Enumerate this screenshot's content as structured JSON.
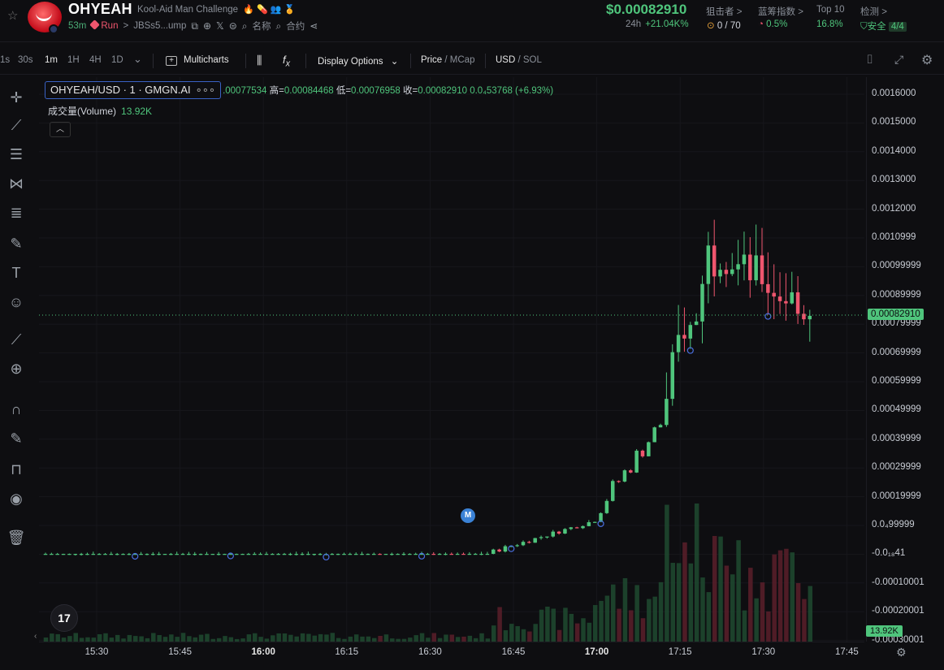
{
  "header": {
    "title": "OHYEAH",
    "subtitle": "Kool-Aid Man Challenge",
    "age": "53m",
    "run_label": "Run",
    "address": "JBSs5...ump",
    "name_label": "名称",
    "contract_label": "合约",
    "price": "$0.00082910",
    "change_label": "24h",
    "change_value": "+21.04K%",
    "sniper_label": "狙击者 >",
    "sniper_value": "0 / 70",
    "bluechip_label": "蓝筹指数 >",
    "bluechip_value": "0.5%",
    "top10_label": "Top 10",
    "top10_value": "16.8%",
    "audit_label": "检测 >",
    "audit_value": "安全",
    "audit_score": "4/4"
  },
  "toolbar": {
    "intervals": [
      "1s",
      "30s",
      "1m",
      "1H",
      "4H",
      "1D"
    ],
    "active_interval": "1m",
    "multicharts": "Multicharts",
    "display_options": "Display Options",
    "price_label": "Price",
    "mcap_label": "MCap",
    "usd_label": "USD",
    "sol_label": "SOL"
  },
  "legend": {
    "symbol": "OHYEAH/USD · 1 · GMGN.AI",
    "ohlc": ".00077534",
    "high_label": "高=",
    "high": "0.00084468",
    "low_label": "低=",
    "low": "0.00076958",
    "close_label": "收=",
    "close": "0.00082910",
    "change": "0.0₄53768 (+6.93%)",
    "volume_label": "成交量(Volume)",
    "volume_value": "13.92K"
  },
  "yaxis": {
    "labels": [
      "0.0016000",
      "0.0015000",
      "0.0014000",
      "0.0013000",
      "0.0012000",
      "0.0010999",
      "0.00099999",
      "0.00089999",
      "0.00079999",
      "0.00069999",
      "0.00059999",
      "0.00049999",
      "0.00039999",
      "0.00029999",
      "0.00019999",
      "0.0₄99999",
      "-0.0₁₈41",
      "-0.00010001",
      "-0.00020001",
      "-0.00030001"
    ],
    "current_price": "0.00082910",
    "volume_tag": "13.92K"
  },
  "xaxis": {
    "labels": [
      "15:30",
      "15:45",
      "16:00",
      "16:15",
      "16:30",
      "16:45",
      "17:00",
      "17:15",
      "17:30",
      "17:45"
    ],
    "bold": [
      "16:00",
      "17:00"
    ]
  },
  "chart_data": {
    "type": "candlestick",
    "interval": "1m",
    "y_unit": "USD",
    "up_color": "#4fc57c",
    "down_color": "#f0566e",
    "current_price": 0.0008291,
    "candles_per_segment": [
      {
        "from": "15:22",
        "to": "16:38",
        "approx_price": 3e-06,
        "trend": "flat"
      },
      {
        "from": "16:38",
        "to": "16:55",
        "approx_price_start": 2e-05,
        "approx_price_end": 0.00011,
        "trend": "up"
      },
      {
        "from": "16:55",
        "to": "17:07",
        "approx_price_start": 0.00011,
        "approx_price_end": 0.00045,
        "trend": "up"
      },
      {
        "from": "17:07",
        "to": "17:16",
        "approx_price_start": 0.00045,
        "approx_price_end": 0.0011,
        "trend": "up"
      },
      {
        "from": "17:16",
        "to": "17:31",
        "approx_price_start": 0.0011,
        "approx_price_end": 0.00083,
        "trend": "down"
      }
    ],
    "ohlc_last": {
      "high": 0.00084468,
      "low": 0.00076958,
      "close": 0.0008291
    },
    "volume_last": "13.92K"
  }
}
